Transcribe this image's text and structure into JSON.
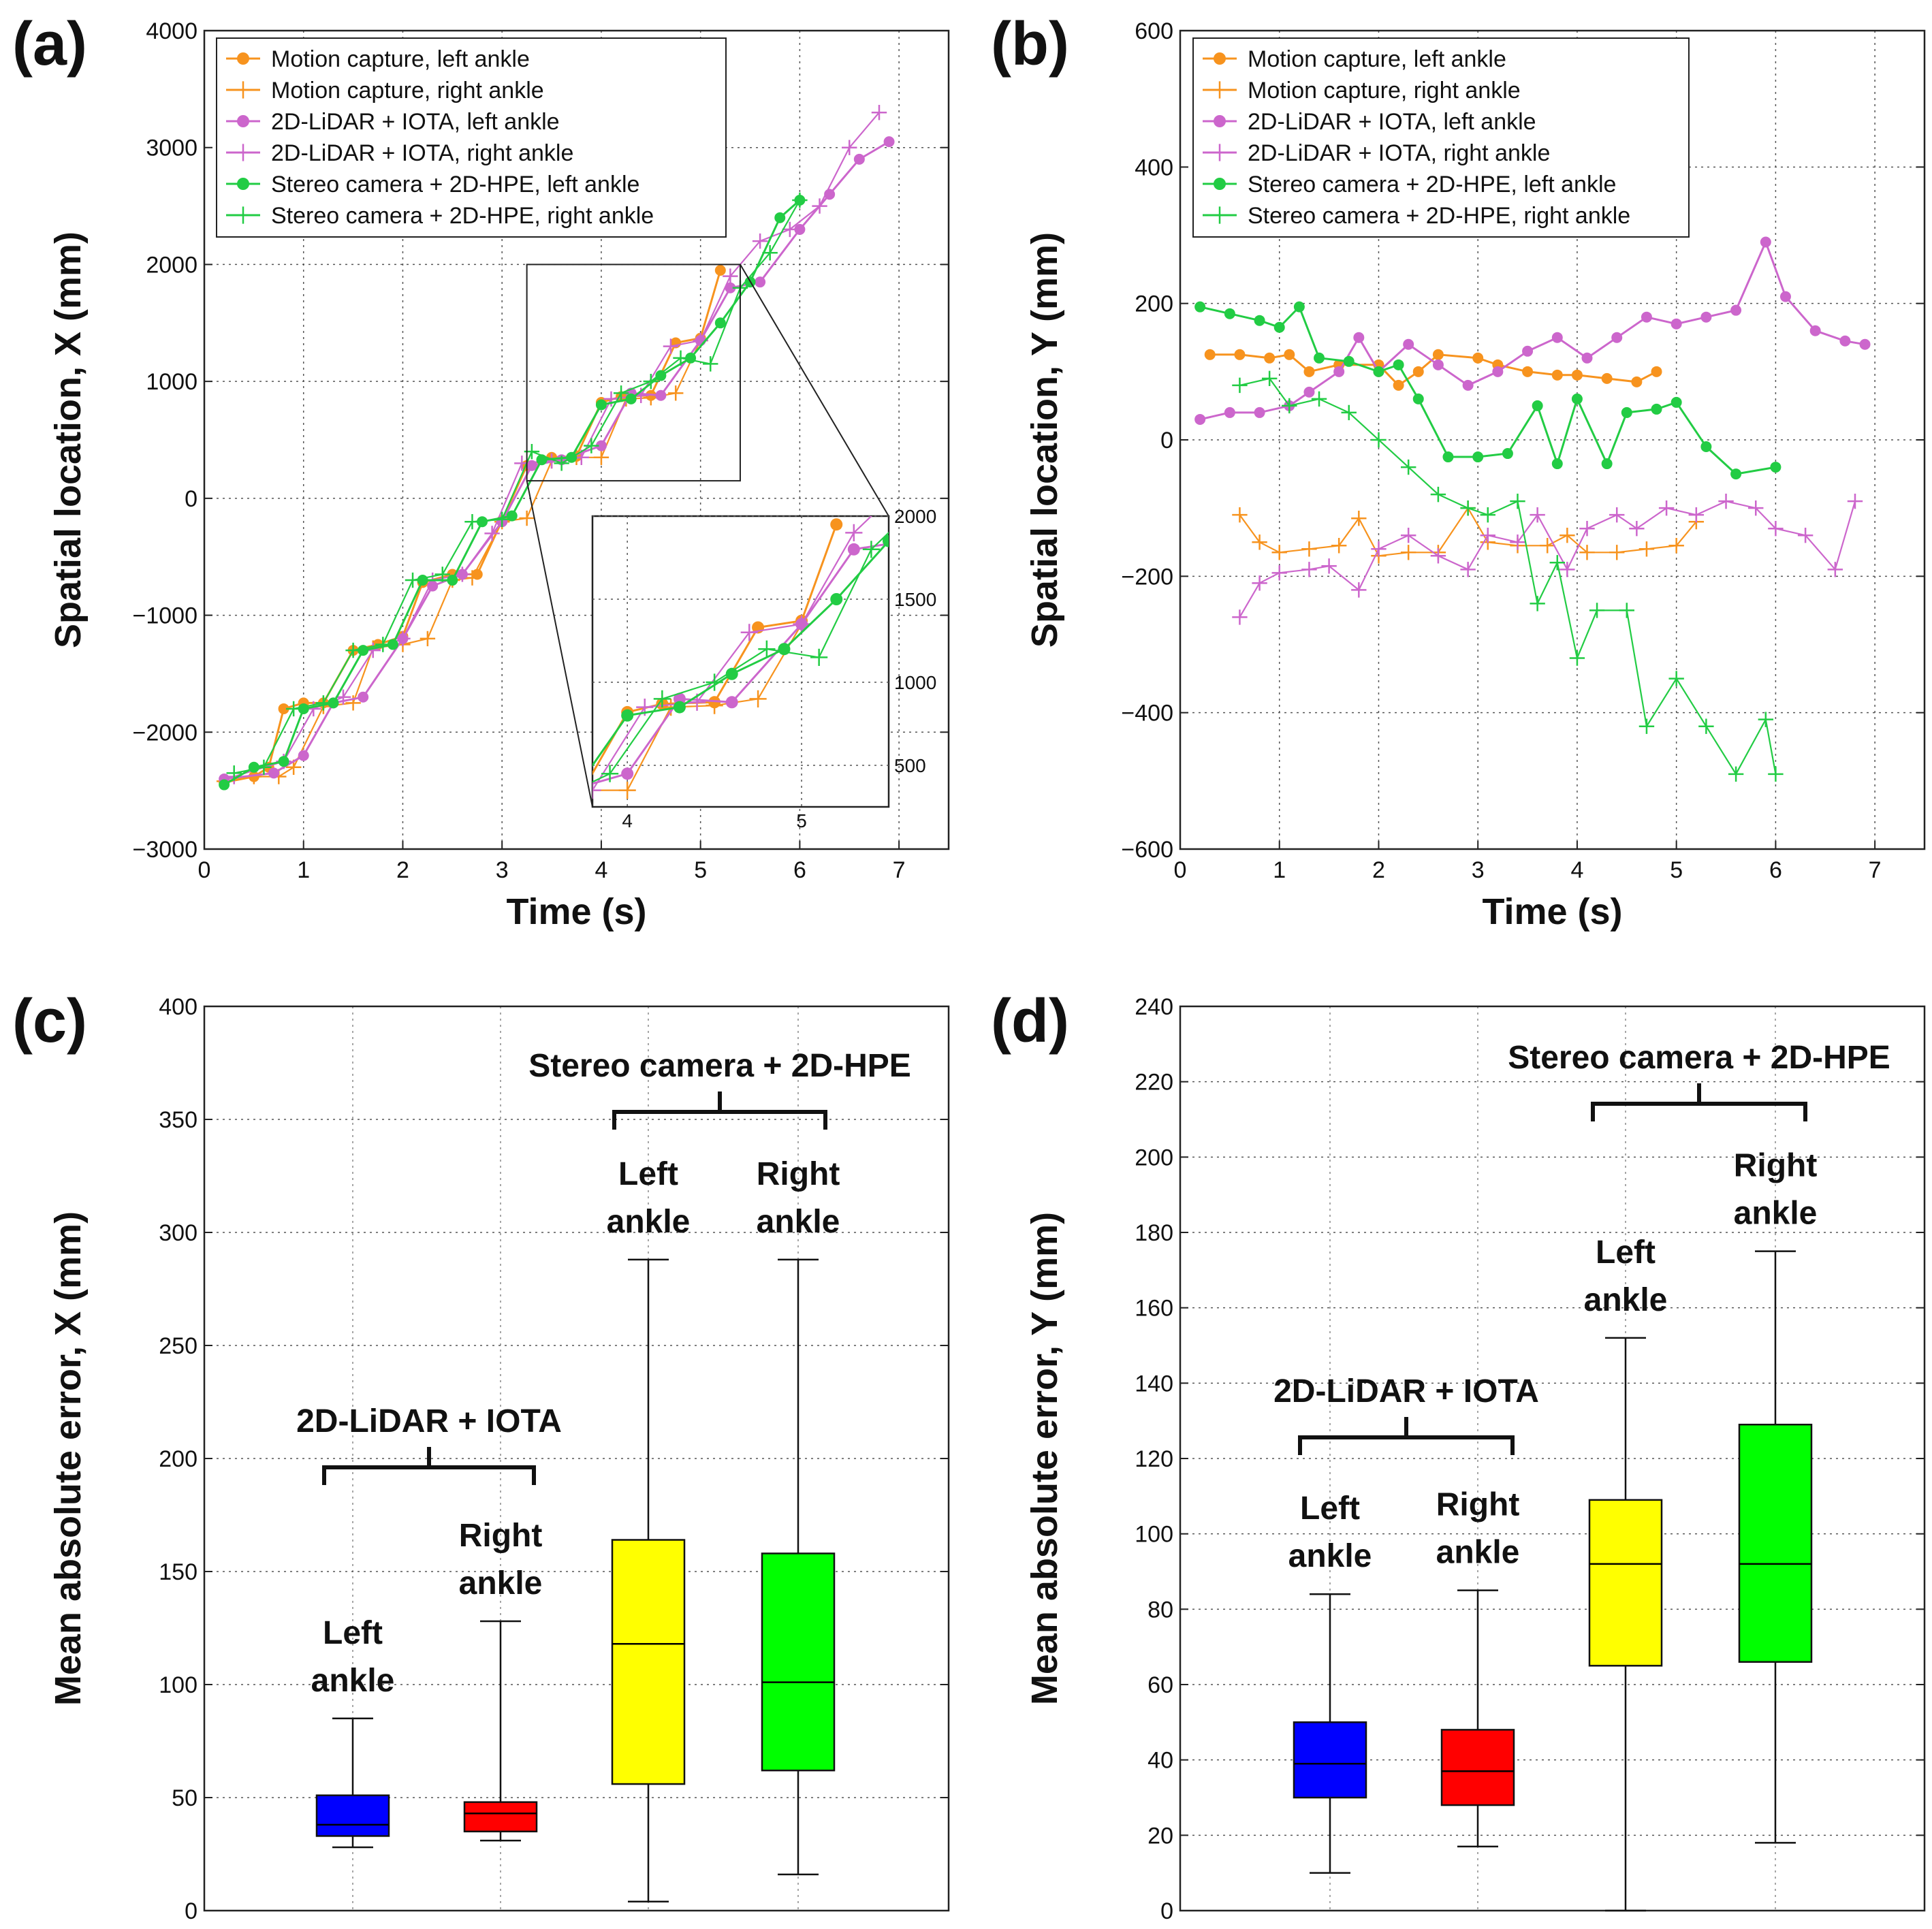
{
  "figure": {
    "panels": [
      "(a)",
      "(b)",
      "(c)",
      "(d)"
    ]
  },
  "chart_data": [
    {
      "id": "a",
      "label": "(a)",
      "type": "line",
      "xlabel": "Time (s)",
      "ylabel": "Spatial location, X (mm)",
      "xlim": [
        0,
        7.5
      ],
      "ylim": [
        -3000,
        4000
      ],
      "xticks": [
        0,
        1,
        2,
        3,
        4,
        5,
        6,
        7
      ],
      "yticks": [
        -3000,
        -2000,
        -1000,
        0,
        1000,
        2000,
        3000,
        4000
      ],
      "grid": true,
      "legend_position": "top-left",
      "series": [
        {
          "name": "Motion capture, left ankle",
          "color": "#F7931E",
          "marker": "dot",
          "x": [
            0.2,
            0.5,
            0.65,
            0.8,
            1.0,
            1.2,
            1.5,
            1.75,
            2.0,
            2.2,
            2.5,
            2.75,
            3.0,
            3.25,
            3.5,
            3.75,
            4.0,
            4.2,
            4.5,
            4.75,
            5.0,
            5.2
          ],
          "y": [
            -2430,
            -2380,
            -2300,
            -1800,
            -1750,
            -1750,
            -1300,
            -1250,
            -1180,
            -720,
            -650,
            -650,
            -190,
            280,
            350,
            360,
            820,
            870,
            880,
            1330,
            1370,
            1950
          ]
        },
        {
          "name": "Motion capture, right ankle",
          "color": "#F7931E",
          "marker": "plus",
          "x": [
            0.2,
            0.5,
            0.75,
            0.9,
            1.2,
            1.5,
            1.7,
            2.0,
            2.25,
            2.5,
            2.7,
            3.0,
            3.25,
            3.5,
            3.75,
            4.0,
            4.25,
            4.5,
            4.75,
            5.0
          ],
          "y": [
            -2420,
            -2380,
            -2380,
            -2300,
            -1780,
            -1750,
            -1280,
            -1250,
            -1200,
            -700,
            -680,
            -200,
            -170,
            320,
            350,
            350,
            850,
            860,
            900,
            1350
          ]
        },
        {
          "name": "2D-LiDAR + IOTA, left ankle",
          "color": "#CC66CC",
          "marker": "dot",
          "x": [
            0.2,
            0.7,
            1.0,
            1.3,
            1.6,
            2.0,
            2.3,
            2.6,
            3.0,
            3.3,
            3.6,
            4.0,
            4.3,
            4.6,
            5.0,
            5.3,
            5.6,
            6.0,
            6.3,
            6.6,
            6.9
          ],
          "y": [
            -2400,
            -2350,
            -2200,
            -1750,
            -1700,
            -1200,
            -750,
            -650,
            -200,
            280,
            330,
            450,
            900,
            880,
            1350,
            1800,
            1850,
            2300,
            2600,
            2900,
            3050
          ]
        },
        {
          "name": "2D-LiDAR + IOTA, right ankle",
          "color": "#CC66CC",
          "marker": "plus",
          "x": [
            0.3,
            0.8,
            1.1,
            1.4,
            1.7,
            2.0,
            2.3,
            2.6,
            2.9,
            3.2,
            3.5,
            3.8,
            4.1,
            4.4,
            4.7,
            5.0,
            5.3,
            5.6,
            5.9,
            6.2,
            6.5,
            6.8
          ],
          "y": [
            -2380,
            -2250,
            -1800,
            -1700,
            -1300,
            -1200,
            -700,
            -650,
            -300,
            300,
            320,
            350,
            850,
            880,
            1300,
            1350,
            1900,
            2200,
            2300,
            2500,
            3000,
            3300
          ]
        },
        {
          "name": "Stereo camera + 2D-HPE, left ankle",
          "color": "#22CC44",
          "marker": "dot",
          "x": [
            0.2,
            0.5,
            0.8,
            1.0,
            1.3,
            1.6,
            1.9,
            2.2,
            2.5,
            2.8,
            3.1,
            3.4,
            3.7,
            4.0,
            4.3,
            4.6,
            4.9,
            5.2,
            5.5,
            5.8,
            6.0
          ],
          "y": [
            -2450,
            -2300,
            -2250,
            -1800,
            -1750,
            -1300,
            -1250,
            -700,
            -700,
            -200,
            -150,
            330,
            350,
            800,
            850,
            1050,
            1200,
            1500,
            1850,
            2400,
            2550
          ]
        },
        {
          "name": "Stereo camera + 2D-HPE, right ankle",
          "color": "#22CC44",
          "marker": "plus",
          "x": [
            0.3,
            0.6,
            0.9,
            1.2,
            1.5,
            1.8,
            2.1,
            2.4,
            2.7,
            3.0,
            3.3,
            3.6,
            3.9,
            4.2,
            4.5,
            4.8,
            5.1,
            5.4,
            5.7,
            6.0
          ],
          "y": [
            -2350,
            -2300,
            -1800,
            -1750,
            -1300,
            -1250,
            -700,
            -650,
            -200,
            -180,
            400,
            300,
            450,
            900,
            1000,
            1200,
            1150,
            1800,
            2100,
            2550
          ]
        }
      ],
      "inset": {
        "xlim": [
          3.8,
          5.5
        ],
        "ylim": [
          250,
          2000
        ],
        "xticks": [
          4,
          5
        ],
        "yticks": [
          500,
          1000,
          1500,
          2000
        ],
        "source_box": {
          "x": [
            3.25,
            5.4
          ],
          "y": [
            150,
            2000
          ]
        }
      }
    },
    {
      "id": "b",
      "label": "(b)",
      "type": "line",
      "xlabel": "Time (s)",
      "ylabel": "Spatial location, Y (mm)",
      "xlim": [
        0,
        7.5
      ],
      "ylim": [
        -600,
        600
      ],
      "xticks": [
        0,
        1,
        2,
        3,
        4,
        5,
        6,
        7
      ],
      "yticks": [
        -600,
        -400,
        -200,
        0,
        200,
        400,
        600
      ],
      "grid": true,
      "legend_position": "top-left",
      "series": [
        {
          "name": "Motion capture, left ankle",
          "color": "#F7931E",
          "marker": "dot",
          "x": [
            0.3,
            0.6,
            0.9,
            1.1,
            1.3,
            1.6,
            2.0,
            2.2,
            2.4,
            2.6,
            3.0,
            3.2,
            3.5,
            3.8,
            4.0,
            4.3,
            4.6,
            4.8
          ],
          "y": [
            125,
            125,
            120,
            125,
            100,
            110,
            110,
            80,
            100,
            125,
            120,
            110,
            100,
            95,
            95,
            90,
            85,
            100
          ]
        },
        {
          "name": "Motion capture, right ankle",
          "color": "#F7931E",
          "marker": "plus",
          "x": [
            0.6,
            0.8,
            1.0,
            1.3,
            1.6,
            1.8,
            2.0,
            2.3,
            2.6,
            2.9,
            3.1,
            3.4,
            3.7,
            3.9,
            4.1,
            4.4,
            4.7,
            5.0,
            5.2
          ],
          "y": [
            -110,
            -150,
            -165,
            -160,
            -155,
            -115,
            -170,
            -165,
            -165,
            -100,
            -150,
            -155,
            -155,
            -140,
            -165,
            -165,
            -160,
            -155,
            -120
          ]
        },
        {
          "name": "2D-LiDAR + IOTA, left ankle",
          "color": "#CC66CC",
          "marker": "dot",
          "x": [
            0.2,
            0.5,
            0.8,
            1.1,
            1.3,
            1.6,
            1.8,
            2.0,
            2.3,
            2.6,
            2.9,
            3.2,
            3.5,
            3.8,
            4.1,
            4.4,
            4.7,
            5.0,
            5.3,
            5.6,
            5.9,
            6.1,
            6.4,
            6.7,
            6.9
          ],
          "y": [
            30,
            40,
            40,
            50,
            70,
            100,
            150,
            100,
            140,
            110,
            80,
            100,
            130,
            150,
            120,
            150,
            180,
            170,
            180,
            190,
            290,
            210,
            160,
            145,
            140
          ]
        },
        {
          "name": "2D-LiDAR + IOTA, right ankle",
          "color": "#CC66CC",
          "marker": "plus",
          "x": [
            0.6,
            0.8,
            1.0,
            1.3,
            1.5,
            1.8,
            2.0,
            2.3,
            2.6,
            2.9,
            3.1,
            3.4,
            3.6,
            3.9,
            4.1,
            4.4,
            4.6,
            4.9,
            5.2,
            5.5,
            5.8,
            6.0,
            6.3,
            6.6,
            6.8
          ],
          "y": [
            -260,
            -210,
            -195,
            -190,
            -185,
            -220,
            -160,
            -140,
            -170,
            -190,
            -140,
            -150,
            -110,
            -190,
            -130,
            -110,
            -130,
            -100,
            -110,
            -90,
            -100,
            -130,
            -140,
            -190,
            -90
          ]
        },
        {
          "name": "Stereo camera + 2D-HPE, left ankle",
          "color": "#22CC44",
          "marker": "dot",
          "x": [
            0.2,
            0.5,
            0.8,
            1.0,
            1.2,
            1.4,
            1.7,
            2.0,
            2.2,
            2.4,
            2.7,
            3.0,
            3.3,
            3.6,
            3.8,
            4.0,
            4.3,
            4.5,
            4.8,
            5.0,
            5.3,
            5.6,
            6.0
          ],
          "y": [
            195,
            185,
            175,
            165,
            195,
            120,
            115,
            100,
            110,
            60,
            -25,
            -25,
            -20,
            50,
            -35,
            60,
            -35,
            40,
            45,
            55,
            -10,
            -50,
            -40
          ]
        },
        {
          "name": "Stereo camera + 2D-HPE, right ankle",
          "color": "#22CC44",
          "marker": "plus",
          "x": [
            0.6,
            0.9,
            1.1,
            1.4,
            1.7,
            2.0,
            2.3,
            2.6,
            2.9,
            3.1,
            3.4,
            3.6,
            3.8,
            4.0,
            4.2,
            4.5,
            4.7,
            5.0,
            5.3,
            5.6,
            5.9,
            6.0
          ],
          "y": [
            80,
            90,
            50,
            60,
            40,
            0,
            -40,
            -80,
            -100,
            -110,
            -90,
            -240,
            -180,
            -320,
            -250,
            -250,
            -420,
            -350,
            -420,
            -490,
            -410,
            -490
          ]
        }
      ]
    },
    {
      "id": "c",
      "label": "(c)",
      "type": "box",
      "xlabel": "",
      "ylabel": "Mean absolute error, X (mm)",
      "ylim": [
        0,
        400
      ],
      "yticks": [
        0,
        50,
        100,
        150,
        200,
        250,
        300,
        350,
        400
      ],
      "grid": true,
      "boxes": [
        {
          "group": "2D-LiDAR + IOTA",
          "label": "Left ankle",
          "color": "#0000FF",
          "median_color": "#000000",
          "min": 28,
          "q1": 33,
          "median": 38,
          "q3": 51,
          "max": 85
        },
        {
          "group": "2D-LiDAR + IOTA",
          "label": "Right ankle",
          "color": "#FF0000",
          "median_color": "#000000",
          "min": 31,
          "q1": 35,
          "median": 43,
          "q3": 48,
          "max": 128
        },
        {
          "group": "Stereo camera + 2D-HPE",
          "label": "Left ankle",
          "color": "#FFFF00",
          "median_color": "#000000",
          "min": 4,
          "q1": 56,
          "median": 118,
          "q3": 164,
          "max": 288
        },
        {
          "group": "Stereo camera + 2D-HPE",
          "label": "Right ankle",
          "color": "#00FF00",
          "median_color": "#000000",
          "min": 16,
          "q1": 62,
          "median": 101,
          "q3": 158,
          "max": 288
        }
      ],
      "groups": [
        "2D-LiDAR + IOTA",
        "Stereo camera + 2D-HPE"
      ]
    },
    {
      "id": "d",
      "label": "(d)",
      "type": "box",
      "xlabel": "",
      "ylabel": "Mean absolute error, Y (mm)",
      "ylim": [
        0,
        240
      ],
      "yticks": [
        0,
        20,
        40,
        60,
        80,
        100,
        120,
        140,
        160,
        180,
        200,
        220,
        240
      ],
      "grid": true,
      "boxes": [
        {
          "group": "2D-LiDAR + IOTA",
          "label": "Left ankle",
          "color": "#0000FF",
          "median_color": "#000000",
          "min": 10,
          "q1": 30,
          "median": 39,
          "q3": 50,
          "max": 84
        },
        {
          "group": "2D-LiDAR + IOTA",
          "label": "Right ankle",
          "color": "#FF0000",
          "median_color": "#000000",
          "min": 17,
          "q1": 28,
          "median": 37,
          "q3": 48,
          "max": 85
        },
        {
          "group": "Stereo camera + 2D-HPE",
          "label": "Left ankle",
          "color": "#FFFF00",
          "median_color": "#000000",
          "min": 0,
          "q1": 65,
          "median": 92,
          "q3": 109,
          "max": 152
        },
        {
          "group": "Stereo camera + 2D-HPE",
          "label": "Right ankle",
          "color": "#00FF00",
          "median_color": "#000000",
          "min": 18,
          "q1": 66,
          "median": 92,
          "q3": 129,
          "max": 175
        }
      ],
      "groups": [
        "2D-LiDAR + IOTA",
        "Stereo camera + 2D-HPE"
      ]
    }
  ]
}
